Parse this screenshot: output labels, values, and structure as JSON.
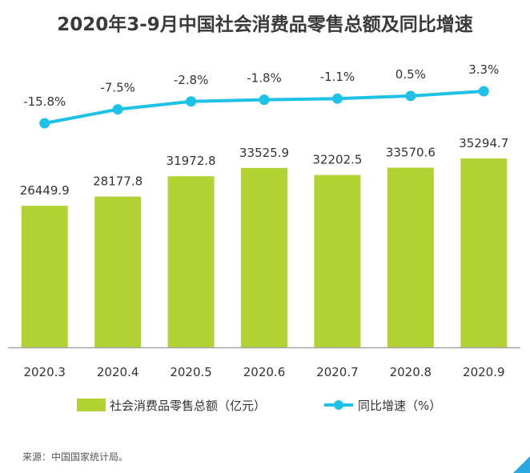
{
  "colors": {
    "bar": "#b1d232",
    "line": "#1ec2e6",
    "axis": "#a6a6a6",
    "text": "#333333",
    "corner": "#2aa8e0"
  },
  "legend": {
    "bar_label": "社会消费品零售总额（亿元）",
    "line_label": "同比增速（%）"
  },
  "source": "来源：中国国家统计局。",
  "chart_data": {
    "type": "bar",
    "title": "2020年3-9月中国社会消费品零售总额及同比增速",
    "categories": [
      "2020.3",
      "2020.4",
      "2020.5",
      "2020.6",
      "2020.7",
      "2020.8",
      "2020.9"
    ],
    "series": [
      {
        "name": "社会消费品零售总额（亿元）",
        "type": "bar",
        "values": [
          26449.9,
          28177.8,
          31972.8,
          33525.9,
          32202.5,
          33570.6,
          35294.7
        ],
        "labels": [
          "26449.9",
          "28177.8",
          "31972.8",
          "33525.9",
          "32202.5",
          "33570.6",
          "35294.7"
        ]
      },
      {
        "name": "同比增速（%）",
        "type": "line",
        "values": [
          -15.8,
          -7.5,
          -2.8,
          -1.8,
          -1.1,
          0.5,
          3.3
        ],
        "labels": [
          "-15.8%",
          "-7.5%",
          "-2.8%",
          "-1.8%",
          "-1.1%",
          "0.5%",
          "3.3%"
        ]
      }
    ],
    "ylim_bar": [
      0,
      40000
    ],
    "ylim_line": [
      -30,
      5
    ],
    "grid": false,
    "legend_position": "bottom"
  }
}
